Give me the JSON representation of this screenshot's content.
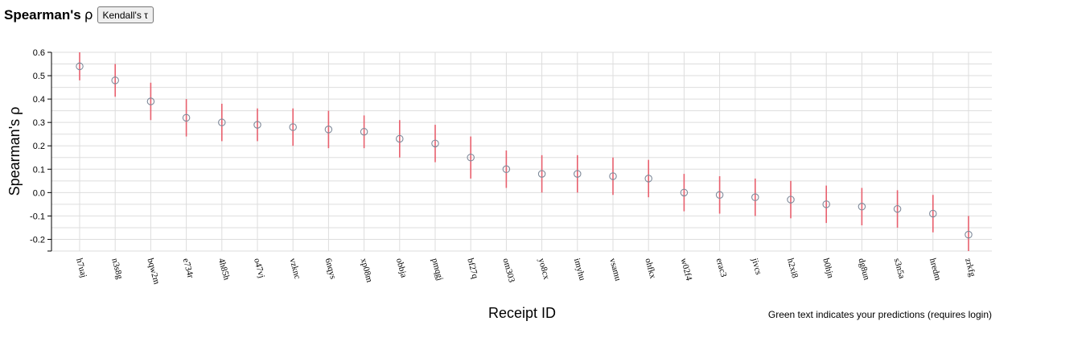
{
  "header": {
    "title": "Spearman's",
    "title_symbol": "ρ",
    "toggle_label": "Kendall's τ"
  },
  "note": "Green text indicates your predictions (requires login)",
  "chart_data": {
    "type": "scatter",
    "xlabel": "Receipt ID",
    "ylabel": "Spearman's ρ",
    "ylim": [
      -0.25,
      0.6
    ],
    "yticks": [
      -0.2,
      -0.1,
      0.0,
      0.1,
      0.2,
      0.3,
      0.4,
      0.5,
      0.6
    ],
    "ytick_labels": [
      "-0.2",
      "-0.1",
      "0.0",
      "0.1",
      "0.2",
      "0.3",
      "0.4",
      "0.5",
      "0.6"
    ],
    "grid": true,
    "categories": [
      "h7uaj",
      "n3s8g",
      "bqw2m",
      "e734r",
      "4h85h",
      "o47vj",
      "vzknc",
      "6nqys",
      "xp08m",
      "obbja",
      "pmqgj",
      "bf27q",
      "om303",
      "yo8cx",
      "imyhu",
      "vsamu",
      "ohfkx",
      "w02f4",
      "erac3",
      "jivcs",
      "h2xi8",
      "b0hjn",
      "dg8un",
      "s3n5a",
      "hredm",
      "zrkfg"
    ],
    "values": [
      0.54,
      0.48,
      0.39,
      0.32,
      0.3,
      0.29,
      0.28,
      0.27,
      0.26,
      0.23,
      0.21,
      0.15,
      0.1,
      0.08,
      0.08,
      0.07,
      0.06,
      0.0,
      -0.01,
      -0.02,
      -0.03,
      -0.05,
      -0.06,
      -0.07,
      -0.09,
      -0.18
    ],
    "lower": [
      0.48,
      0.41,
      0.31,
      0.24,
      0.22,
      0.22,
      0.2,
      0.19,
      0.19,
      0.15,
      0.13,
      0.06,
      0.02,
      0.0,
      0.0,
      -0.01,
      -0.02,
      -0.08,
      -0.09,
      -0.1,
      -0.11,
      -0.13,
      -0.14,
      -0.15,
      -0.17,
      -0.26
    ],
    "upper": [
      0.6,
      0.55,
      0.47,
      0.4,
      0.38,
      0.36,
      0.36,
      0.35,
      0.33,
      0.31,
      0.29,
      0.24,
      0.18,
      0.16,
      0.16,
      0.15,
      0.14,
      0.08,
      0.07,
      0.06,
      0.05,
      0.03,
      0.02,
      0.01,
      -0.01,
      -0.1
    ],
    "colors": {
      "error_bar": "#e8606e",
      "marker": "#7f8a9a",
      "grid": "#dddddd",
      "axis": "#000000"
    }
  }
}
